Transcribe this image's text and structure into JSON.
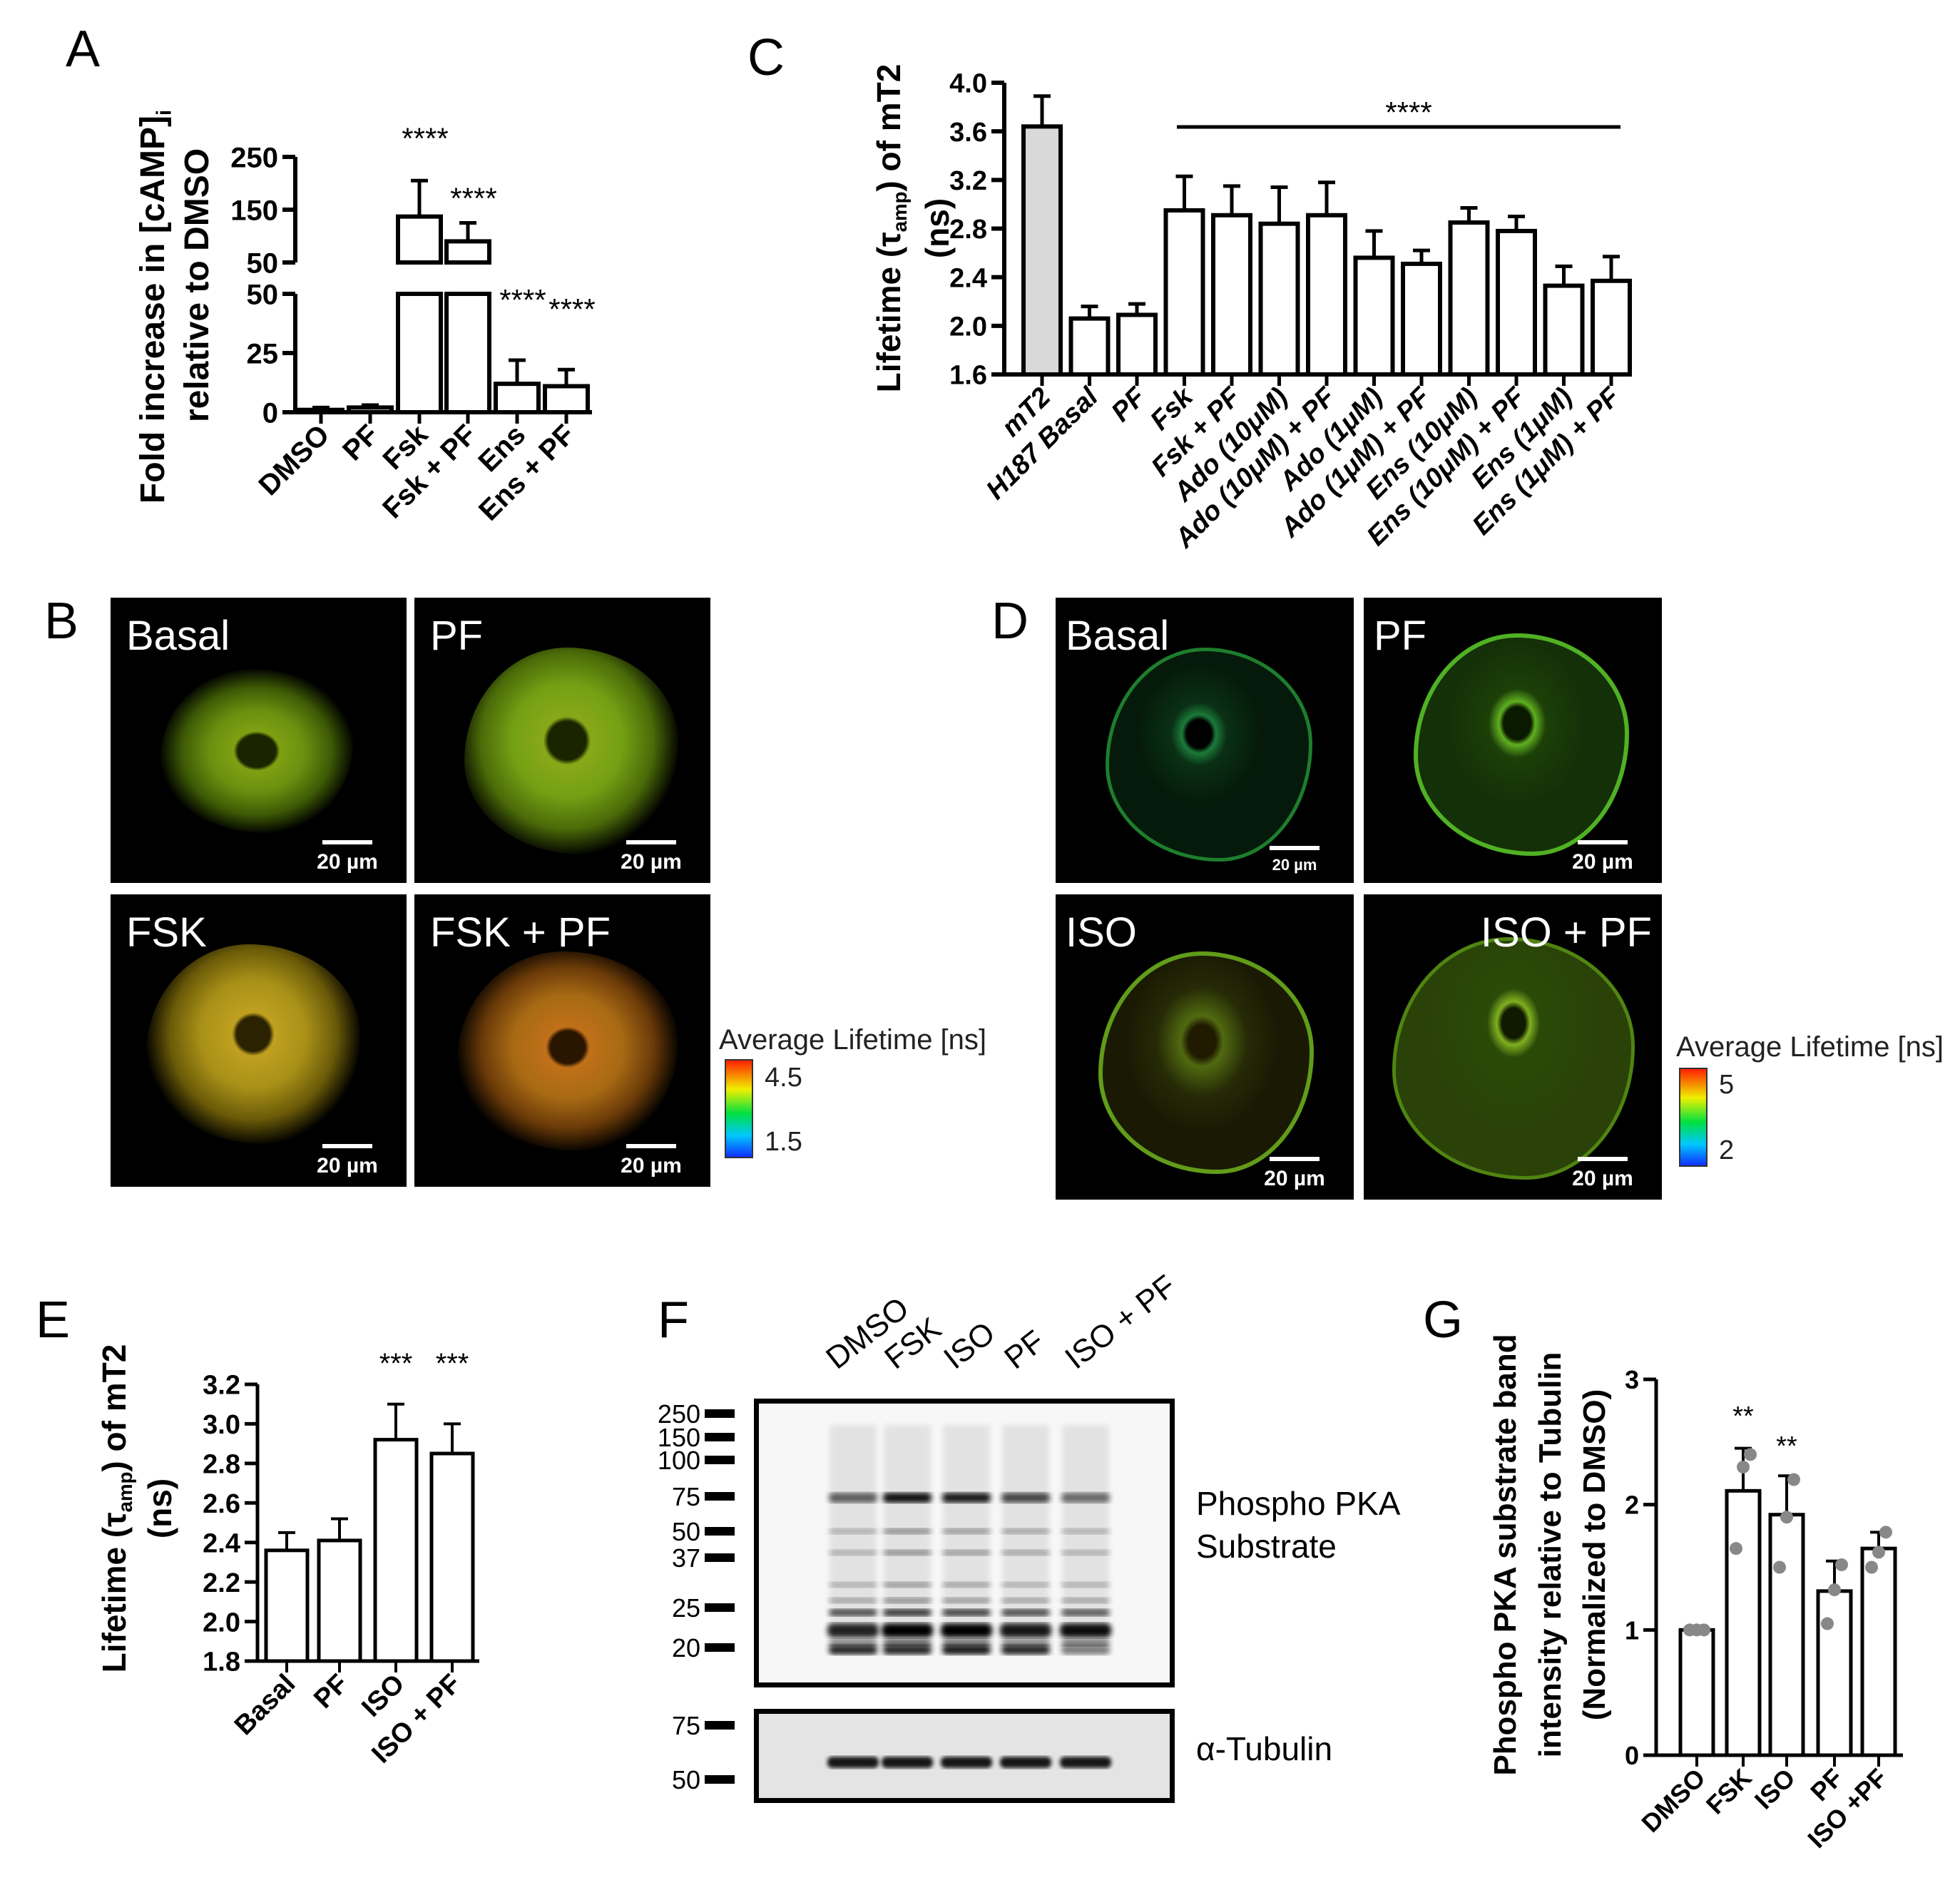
{
  "panels": {
    "A": "A",
    "B": "B",
    "C": "C",
    "D": "D",
    "E": "E",
    "F": "F",
    "G": "G"
  },
  "chart_data": [
    {
      "panel": "A",
      "type": "bar",
      "ylabel": {
        "line1": "Fold increase in [cAMP]",
        "line1_sub": "i",
        "line2": "relative to DMSO"
      },
      "broken_axis": true,
      "yticks_lower": [
        "0",
        "25",
        "50"
      ],
      "yticks_upper": [
        "50",
        "150",
        "250"
      ],
      "ylim_lower": [
        0,
        50
      ],
      "ylim_upper": [
        50,
        250
      ],
      "categories": [
        "DMSO",
        "PF",
        "Fsk",
        "Fsk + PF",
        "Ens",
        "Ens + PF"
      ],
      "values": [
        1,
        2,
        137,
        90,
        12,
        11
      ],
      "error_upper": [
        2,
        3,
        205,
        125,
        22,
        18
      ],
      "significance": [
        "",
        "",
        "****",
        "****",
        "****",
        "****"
      ]
    },
    {
      "panel": "C",
      "type": "bar",
      "ylabel": {
        "pre": "Lifetime (",
        "sym": "τ",
        "sub": "amp",
        "post": ") of mT2",
        "line2": "(ns)"
      },
      "ylim": [
        1.6,
        4.0
      ],
      "yticks": [
        "1.6",
        "2.0",
        "2.4",
        "2.8",
        "3.2",
        "3.6",
        "4.0"
      ],
      "categories": [
        "mT2",
        "H187 Basal",
        "PF",
        "Fsk",
        "Fsk + PF",
        "Ado (10μM)",
        "Ado (10μM) + PF",
        "Ado (1μM)",
        "Ado (1μM) + PF",
        "Ens (10μM)",
        "Ens (10μM) + PF",
        "Ens (1μM)",
        "Ens (1μM) + PF"
      ],
      "values": [
        3.64,
        2.06,
        2.09,
        2.95,
        2.91,
        2.84,
        2.91,
        2.56,
        2.51,
        2.85,
        2.78,
        2.33,
        2.37
      ],
      "error_upper": [
        3.89,
        2.16,
        2.18,
        3.23,
        3.15,
        3.14,
        3.18,
        2.78,
        2.62,
        2.97,
        2.9,
        2.49,
        2.57
      ],
      "bar_fill": [
        "#d9d9d9",
        "#ffffff",
        "#ffffff",
        "#ffffff",
        "#ffffff",
        "#ffffff",
        "#ffffff",
        "#ffffff",
        "#ffffff",
        "#ffffff",
        "#ffffff",
        "#ffffff",
        "#ffffff"
      ],
      "significance_bar": {
        "from": "Fsk",
        "to": "Ens (1μM) + PF",
        "label": "****"
      }
    },
    {
      "panel": "E",
      "type": "bar",
      "ylabel": {
        "pre": "Lifetime (",
        "sym": "τ",
        "sub": "amp",
        "post": ") of mT2",
        "line2": "(ns)"
      },
      "ylim": [
        1.8,
        3.2
      ],
      "yticks": [
        "1.8",
        "2.0",
        "2.2",
        "2.4",
        "2.6",
        "2.8",
        "3.0",
        "3.2"
      ],
      "categories": [
        "Basal",
        "PF",
        "ISO",
        "ISO + PF"
      ],
      "values": [
        2.36,
        2.41,
        2.92,
        2.85
      ],
      "error_upper": [
        2.45,
        2.52,
        3.1,
        3.0
      ],
      "significance": [
        "",
        "",
        "***",
        "***"
      ]
    },
    {
      "panel": "G",
      "type": "bar",
      "ylabel": {
        "line1": "Phospho PKA substrate band",
        "line2": "intensity  relative to Tubulin",
        "line3": "(Normalized to DMSO)"
      },
      "ylim": [
        0,
        3
      ],
      "yticks": [
        "0",
        "1",
        "2",
        "3"
      ],
      "categories": [
        "DMSO",
        "FSK",
        "ISO",
        "PF",
        "ISO +PF"
      ],
      "values": [
        1.0,
        2.11,
        1.92,
        1.31,
        1.65
      ],
      "error_upper": [
        1.0,
        2.45,
        2.23,
        1.55,
        1.78
      ],
      "points": [
        [
          1,
          1,
          1
        ],
        [
          1.65,
          2.3,
          2.4
        ],
        [
          1.5,
          1.9,
          2.2
        ],
        [
          1.05,
          1.32,
          1.52
        ],
        [
          1.5,
          1.62,
          1.78
        ]
      ],
      "significance": [
        "",
        "**",
        "**",
        "",
        ""
      ]
    }
  ],
  "panel_B": {
    "images": [
      {
        "title": "Basal",
        "scale": "20 µm"
      },
      {
        "title": "PF",
        "scale": "20 µm"
      },
      {
        "title": "FSK",
        "scale": "20 µm"
      },
      {
        "title": "FSK + PF",
        "scale": "20 µm"
      }
    ],
    "colorbar": {
      "title": "Average Lifetime [ns]",
      "max": "4.5",
      "min": "1.5"
    }
  },
  "panel_D": {
    "images": [
      {
        "title": "Basal",
        "scale": "20 µm"
      },
      {
        "title": "PF",
        "scale": "20 µm"
      },
      {
        "title": "ISO",
        "scale": "20 µm"
      },
      {
        "title": "ISO + PF",
        "scale": "20 µm"
      }
    ],
    "colorbar": {
      "title": "Average Lifetime [ns]",
      "max": "5",
      "min": "2"
    }
  },
  "panel_F": {
    "lanes": [
      "DMSO",
      "FSK",
      "ISO",
      "PF",
      "ISO + PF"
    ],
    "markers_top": [
      "250",
      "150",
      "100",
      "75",
      "50",
      "37",
      "25",
      "20"
    ],
    "markers_bottom": [
      "75",
      "50"
    ],
    "label_top": [
      "Phospho PKA",
      "Substrate"
    ],
    "label_bottom": "α-Tubulin"
  }
}
